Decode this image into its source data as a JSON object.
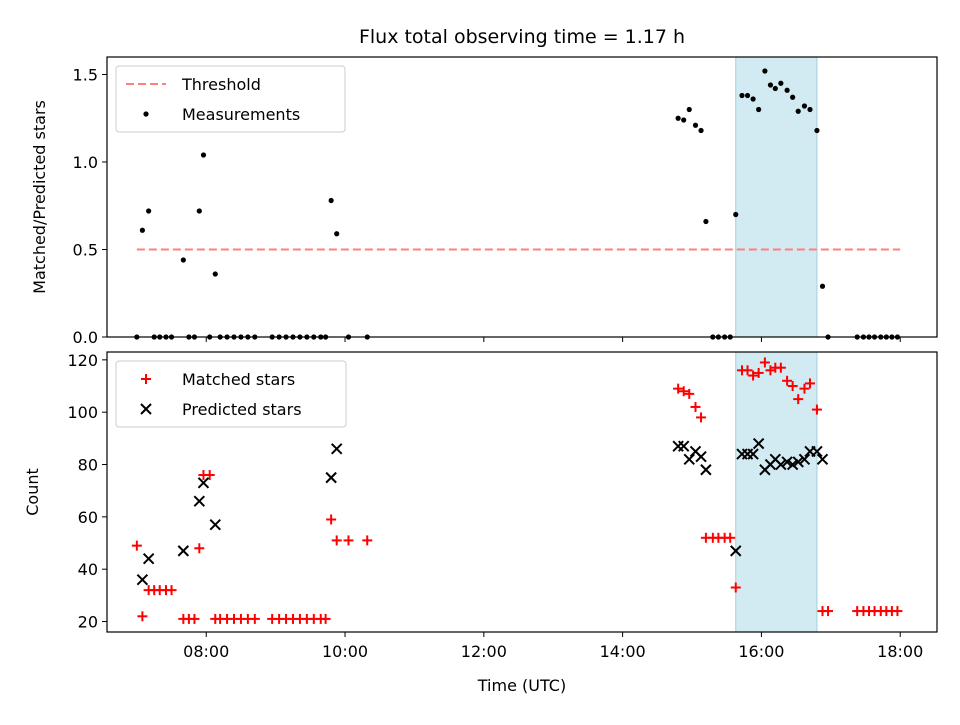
{
  "chart_data": {
    "title": "Flux total observing time = 1.17 h",
    "xlabel": "Time (UTC)",
    "x_ticks": [
      "08:00",
      "10:00",
      "12:00",
      "14:00",
      "16:00",
      "18:00"
    ],
    "x_range_hours": [
      6.57,
      18.53
    ],
    "highlight_span_hours": [
      15.63,
      16.8
    ],
    "highlight_color": "#add8e6",
    "subplots": [
      {
        "type": "scatter",
        "ylabel": "Matched/Predicted stars",
        "ylim": [
          0,
          1.6
        ],
        "y_ticks": [
          "0.0",
          "0.5",
          "1.0",
          "1.5"
        ],
        "legend_position": "upper-left",
        "threshold": {
          "name": "Threshold",
          "value": 0.5,
          "x_range": [
            7.0,
            18.0
          ],
          "color": "#ff7f7f",
          "style": "dashed"
        },
        "series": [
          {
            "name": "Measurements",
            "marker": "dot",
            "color": "#000000",
            "points": [
              [
                7.0,
                0.0
              ],
              [
                7.08,
                0.61
              ],
              [
                7.17,
                0.72
              ],
              [
                7.25,
                0.0
              ],
              [
                7.33,
                0.0
              ],
              [
                7.42,
                0.0
              ],
              [
                7.5,
                0.0
              ],
              [
                7.67,
                0.44
              ],
              [
                7.75,
                0.0
              ],
              [
                7.83,
                0.0
              ],
              [
                7.9,
                0.72
              ],
              [
                7.96,
                1.04
              ],
              [
                8.05,
                0.0
              ],
              [
                8.13,
                0.36
              ],
              [
                8.2,
                0.0
              ],
              [
                8.3,
                0.0
              ],
              [
                8.4,
                0.0
              ],
              [
                8.5,
                0.0
              ],
              [
                8.6,
                0.0
              ],
              [
                8.7,
                0.0
              ],
              [
                8.95,
                0.0
              ],
              [
                9.05,
                0.0
              ],
              [
                9.15,
                0.0
              ],
              [
                9.25,
                0.0
              ],
              [
                9.35,
                0.0
              ],
              [
                9.45,
                0.0
              ],
              [
                9.55,
                0.0
              ],
              [
                9.65,
                0.0
              ],
              [
                9.72,
                0.0
              ],
              [
                9.8,
                0.78
              ],
              [
                9.88,
                0.59
              ],
              [
                10.05,
                0.0
              ],
              [
                10.32,
                0.0
              ],
              [
                14.8,
                1.25
              ],
              [
                14.88,
                1.24
              ],
              [
                14.96,
                1.3
              ],
              [
                15.05,
                1.21
              ],
              [
                15.13,
                1.18
              ],
              [
                15.2,
                0.66
              ],
              [
                15.3,
                0.0
              ],
              [
                15.38,
                0.0
              ],
              [
                15.47,
                0.0
              ],
              [
                15.55,
                0.0
              ],
              [
                15.63,
                0.7
              ],
              [
                15.72,
                1.38
              ],
              [
                15.8,
                1.38
              ],
              [
                15.88,
                1.36
              ],
              [
                15.96,
                1.3
              ],
              [
                16.05,
                1.52
              ],
              [
                16.13,
                1.44
              ],
              [
                16.2,
                1.42
              ],
              [
                16.28,
                1.45
              ],
              [
                16.37,
                1.41
              ],
              [
                16.45,
                1.37
              ],
              [
                16.53,
                1.29
              ],
              [
                16.62,
                1.32
              ],
              [
                16.7,
                1.3
              ],
              [
                16.8,
                1.18
              ],
              [
                16.88,
                0.29
              ],
              [
                16.96,
                0.0
              ],
              [
                17.38,
                0.0
              ],
              [
                17.47,
                0.0
              ],
              [
                17.55,
                0.0
              ],
              [
                17.63,
                0.0
              ],
              [
                17.72,
                0.0
              ],
              [
                17.8,
                0.0
              ],
              [
                17.88,
                0.0
              ],
              [
                17.96,
                0.0
              ]
            ]
          }
        ]
      },
      {
        "type": "scatter",
        "ylabel": "Count",
        "ylim": [
          16,
          123
        ],
        "y_ticks": [
          "20",
          "40",
          "60",
          "80",
          "100",
          "120"
        ],
        "legend_position": "upper-left",
        "series": [
          {
            "name": "Matched stars",
            "marker": "plus",
            "color": "#ff0000",
            "points": [
              [
                7.0,
                49
              ],
              [
                7.08,
                22
              ],
              [
                7.17,
                32
              ],
              [
                7.25,
                32
              ],
              [
                7.33,
                32
              ],
              [
                7.42,
                32
              ],
              [
                7.5,
                32
              ],
              [
                7.67,
                21
              ],
              [
                7.75,
                21
              ],
              [
                7.83,
                21
              ],
              [
                7.9,
                48
              ],
              [
                7.96,
                76
              ],
              [
                8.05,
                76
              ],
              [
                8.13,
                21
              ],
              [
                8.2,
                21
              ],
              [
                8.3,
                21
              ],
              [
                8.4,
                21
              ],
              [
                8.5,
                21
              ],
              [
                8.6,
                21
              ],
              [
                8.7,
                21
              ],
              [
                8.95,
                21
              ],
              [
                9.05,
                21
              ],
              [
                9.15,
                21
              ],
              [
                9.25,
                21
              ],
              [
                9.35,
                21
              ],
              [
                9.45,
                21
              ],
              [
                9.55,
                21
              ],
              [
                9.65,
                21
              ],
              [
                9.72,
                21
              ],
              [
                9.8,
                59
              ],
              [
                9.88,
                51
              ],
              [
                10.05,
                51
              ],
              [
                10.32,
                51
              ],
              [
                14.8,
                109
              ],
              [
                14.88,
                108
              ],
              [
                14.96,
                107
              ],
              [
                15.05,
                102
              ],
              [
                15.13,
                98
              ],
              [
                15.2,
                52
              ],
              [
                15.3,
                52
              ],
              [
                15.38,
                52
              ],
              [
                15.47,
                52
              ],
              [
                15.55,
                52
              ],
              [
                15.63,
                33
              ],
              [
                15.72,
                116
              ],
              [
                15.8,
                116
              ],
              [
                15.88,
                114
              ],
              [
                15.96,
                115
              ],
              [
                16.05,
                119
              ],
              [
                16.13,
                116
              ],
              [
                16.2,
                117
              ],
              [
                16.28,
                117
              ],
              [
                16.37,
                112
              ],
              [
                16.45,
                110
              ],
              [
                16.53,
                105
              ],
              [
                16.62,
                109
              ],
              [
                16.7,
                111
              ],
              [
                16.8,
                101
              ],
              [
                16.88,
                24
              ],
              [
                16.96,
                24
              ],
              [
                17.38,
                24
              ],
              [
                17.47,
                24
              ],
              [
                17.55,
                24
              ],
              [
                17.63,
                24
              ],
              [
                17.72,
                24
              ],
              [
                17.8,
                24
              ],
              [
                17.88,
                24
              ],
              [
                17.96,
                24
              ]
            ]
          },
          {
            "name": "Predicted stars",
            "marker": "x",
            "color": "#000000",
            "points": [
              [
                7.08,
                36
              ],
              [
                7.17,
                44
              ],
              [
                7.67,
                47
              ],
              [
                7.9,
                66
              ],
              [
                7.96,
                73
              ],
              [
                8.13,
                57
              ],
              [
                9.8,
                75
              ],
              [
                9.88,
                86
              ],
              [
                14.8,
                87
              ],
              [
                14.88,
                87
              ],
              [
                14.96,
                82
              ],
              [
                15.05,
                85
              ],
              [
                15.13,
                83
              ],
              [
                15.2,
                78
              ],
              [
                15.63,
                47
              ],
              [
                15.72,
                84
              ],
              [
                15.8,
                84
              ],
              [
                15.88,
                84
              ],
              [
                15.96,
                88
              ],
              [
                16.05,
                78
              ],
              [
                16.13,
                80
              ],
              [
                16.2,
                82
              ],
              [
                16.28,
                80
              ],
              [
                16.37,
                81
              ],
              [
                16.45,
                80
              ],
              [
                16.53,
                81
              ],
              [
                16.62,
                82
              ],
              [
                16.7,
                85
              ],
              [
                16.8,
                85
              ],
              [
                16.88,
                82
              ]
            ]
          }
        ]
      }
    ]
  }
}
